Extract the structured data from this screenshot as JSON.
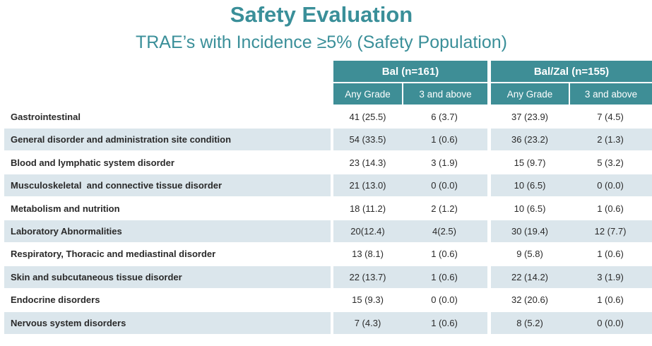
{
  "title": "Safety Evaluation",
  "subtitle": "TRAE’s with Incidence ≥5% (Safety Population)",
  "colors": {
    "header_bg": "#3e8e96",
    "title": "#3a8f99",
    "row_shade": "#dbe6ec"
  },
  "table": {
    "groups": [
      "Bal (n=161)",
      "Bal/Zal (n=155)"
    ],
    "subheaders": [
      "Any Grade",
      "3 and above",
      "Any Grade",
      "3 and above"
    ],
    "rows": [
      {
        "label": "Gastrointestinal",
        "values": [
          "41 (25.5)",
          "6 (3.7)",
          "37 (23.9)",
          "7 (4.5)"
        ]
      },
      {
        "label": "General disorder and administration site condition",
        "values": [
          "54 (33.5)",
          "1 (0.6)",
          "36 (23.2)",
          "2 (1.3)"
        ]
      },
      {
        "label": "Blood and lymphatic system disorder",
        "values": [
          "23 (14.3)",
          "3 (1.9)",
          "15 (9.7)",
          "5 (3.2)"
        ]
      },
      {
        "label": "Musculoskeletal  and connective tissue disorder",
        "values": [
          "21 (13.0)",
          "0 (0.0)",
          "10 (6.5)",
          "0 (0.0)"
        ]
      },
      {
        "label": "Metabolism and nutrition",
        "values": [
          "18 (11.2)",
          "2 (1.2)",
          "10 (6.5)",
          "1 (0.6)"
        ]
      },
      {
        "label": "Laboratory Abnormalities",
        "values": [
          "20(12.4)",
          "4(2.5)",
          "30 (19.4)",
          "12 (7.7)"
        ]
      },
      {
        "label": "Respiratory, Thoracic and mediastinal disorder",
        "values": [
          "13 (8.1)",
          "1 (0.6)",
          "9 (5.8)",
          "1 (0.6)"
        ]
      },
      {
        "label": "Skin and subcutaneous tissue disorder",
        "values": [
          "22 (13.7)",
          "1 (0.6)",
          "22 (14.2)",
          "3 (1.9)"
        ]
      },
      {
        "label": "Endocrine disorders",
        "values": [
          "15 (9.3)",
          "0 (0.0)",
          "32 (20.6)",
          "1 (0.6)"
        ]
      },
      {
        "label": "Nervous system disorders",
        "values": [
          "7 (4.3)",
          "1 (0.6)",
          "8 (5.2)",
          "0 (0.0)"
        ]
      }
    ]
  }
}
